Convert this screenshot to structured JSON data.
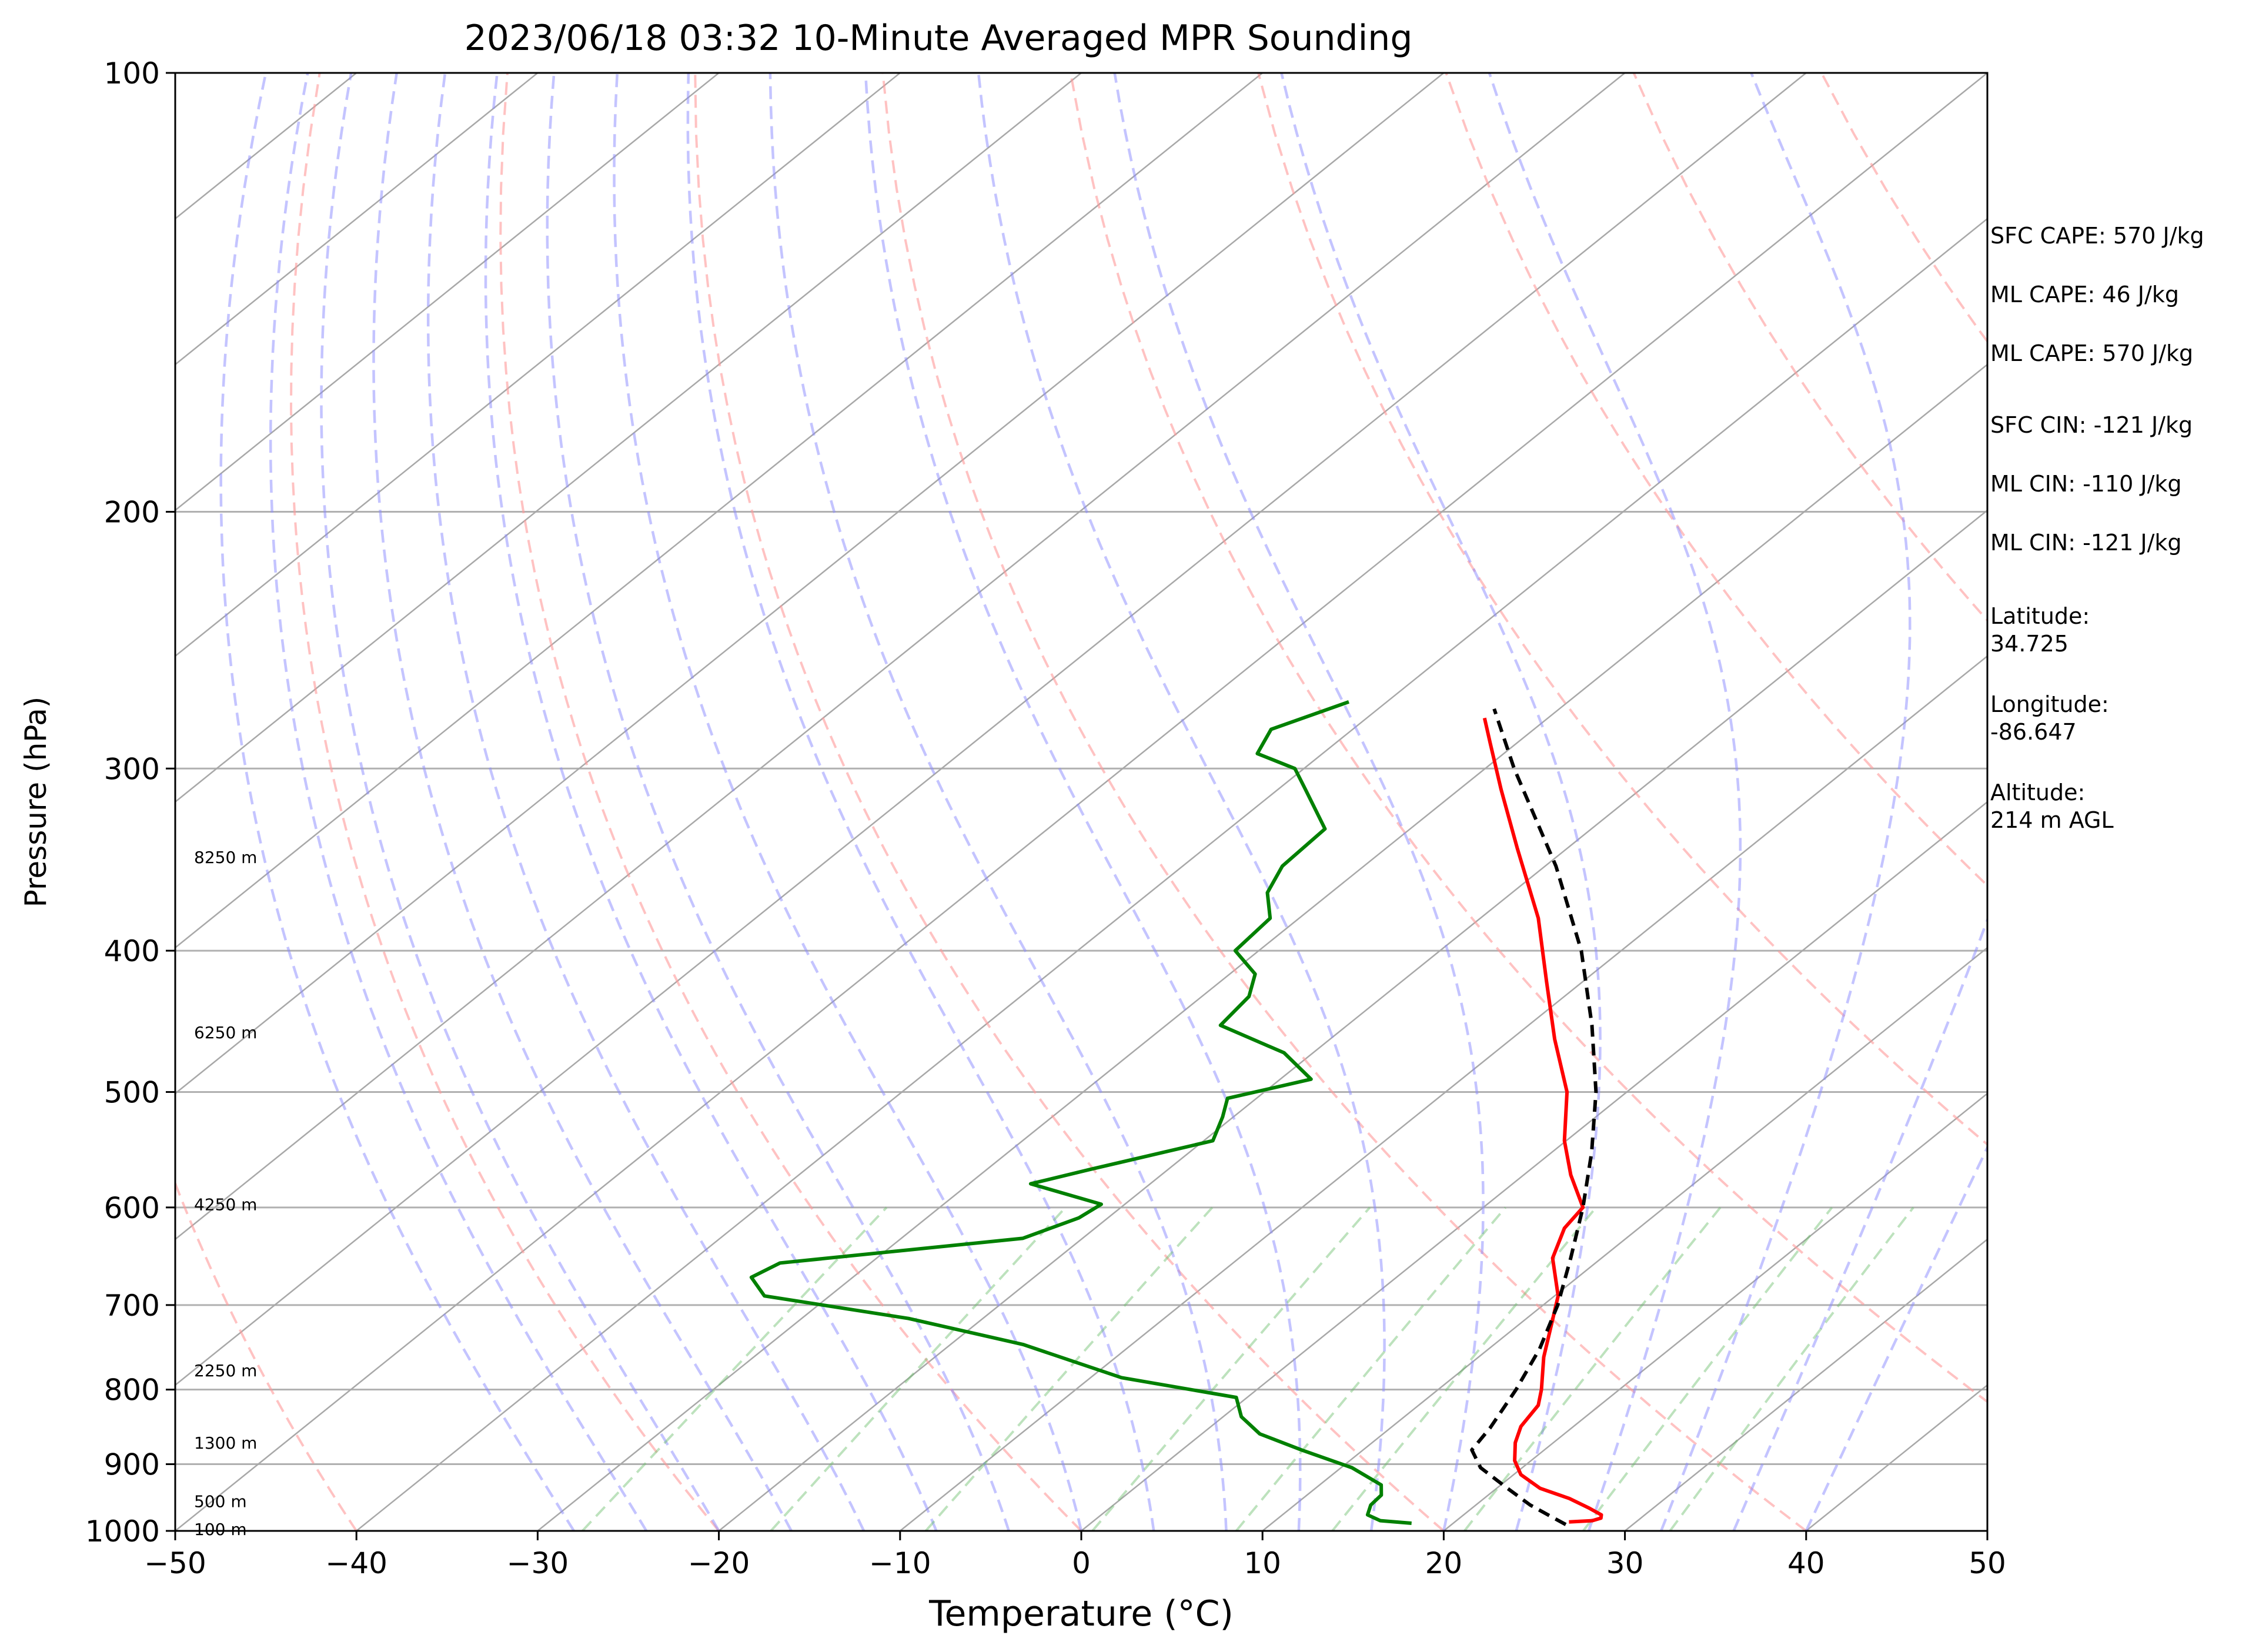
{
  "chart_data": {
    "type": "line",
    "title": "2023/06/18 03:32 10-Minute Averaged MPR Sounding",
    "xlabel": "Temperature (°C)",
    "ylabel": "Pressure (hPa)",
    "xlim": [
      -50,
      50
    ],
    "ylim": [
      1000,
      100
    ],
    "y_scale": "log",
    "skew_ratio_per_log_pressure": 1,
    "xticks": [
      -50,
      -40,
      -30,
      -20,
      -10,
      0,
      10,
      20,
      30,
      40,
      50
    ],
    "xtick_labels": [
      "−50",
      "−40",
      "−30",
      "−20",
      "−10",
      "0",
      "10",
      "20",
      "30",
      "40",
      "50"
    ],
    "yticks": [
      100,
      200,
      300,
      400,
      500,
      600,
      700,
      800,
      900,
      1000
    ],
    "ytick_labels": [
      "100",
      "200",
      "300",
      "400",
      "500",
      "600",
      "700",
      "800",
      "900",
      "1000"
    ],
    "grid": "horizontal",
    "height_labels": [
      {
        "text": "8250 m",
        "p": 345
      },
      {
        "text": "6250 m",
        "p": 455
      },
      {
        "text": "4250 m",
        "p": 597
      },
      {
        "text": "2250 m",
        "p": 776
      },
      {
        "text": "1300 m",
        "p": 870
      },
      {
        "text": "500 m",
        "p": 954
      },
      {
        "text": "100 m",
        "p": 997
      }
    ],
    "series": [
      {
        "color": "#ff0000",
        "values": [
          {
            "p": 986,
            "t": 26.3
          },
          {
            "p": 984,
            "t": 27.5
          },
          {
            "p": 980,
            "t": 27.8
          },
          {
            "p": 975,
            "t": 27.6
          },
          {
            "p": 965,
            "t": 26.5
          },
          {
            "p": 950,
            "t": 24.7
          },
          {
            "p": 935,
            "t": 22.4
          },
          {
            "p": 915,
            "t": 20.4
          },
          {
            "p": 895,
            "t": 19.1
          },
          {
            "p": 870,
            "t": 17.9
          },
          {
            "p": 848,
            "t": 17.1
          },
          {
            "p": 820,
            "t": 16.6
          },
          {
            "p": 800,
            "t": 15.7
          },
          {
            "p": 760,
            "t": 13.6
          },
          {
            "p": 720,
            "t": 11.7
          },
          {
            "p": 690,
            "t": 10.2
          },
          {
            "p": 650,
            "t": 7.3
          },
          {
            "p": 620,
            "t": 5.9
          },
          {
            "p": 600,
            "t": 5.5
          },
          {
            "p": 570,
            "t": 2.6
          },
          {
            "p": 540,
            "t": -0.1
          },
          {
            "p": 500,
            "t": -3.3
          },
          {
            "p": 460,
            "t": -7.6
          },
          {
            "p": 420,
            "t": -12.0
          },
          {
            "p": 380,
            "t": -16.8
          },
          {
            "p": 340,
            "t": -22.8
          },
          {
            "p": 310,
            "t": -27.7
          },
          {
            "p": 288,
            "t": -31.5
          },
          {
            "p": 277,
            "t": -33.5
          }
        ]
      },
      {
        "color": "#008000",
        "values": [
          {
            "p": 988,
            "t": 17.7
          },
          {
            "p": 984,
            "t": 15.8
          },
          {
            "p": 975,
            "t": 14.7
          },
          {
            "p": 960,
            "t": 14.2
          },
          {
            "p": 945,
            "t": 14.1
          },
          {
            "p": 930,
            "t": 13.4
          },
          {
            "p": 905,
            "t": 10.6
          },
          {
            "p": 880,
            "t": 6.6
          },
          {
            "p": 858,
            "t": 3.2
          },
          {
            "p": 835,
            "t": 1.0
          },
          {
            "p": 810,
            "t": -0.6
          },
          {
            "p": 785,
            "t": -8.3
          },
          {
            "p": 745,
            "t": -16.0
          },
          {
            "p": 715,
            "t": -24.1
          },
          {
            "p": 690,
            "t": -33.6
          },
          {
            "p": 670,
            "t": -35.6
          },
          {
            "p": 655,
            "t": -35.0
          },
          {
            "p": 630,
            "t": -23.3
          },
          {
            "p": 610,
            "t": -21.6
          },
          {
            "p": 597,
            "t": -21.3
          },
          {
            "p": 578,
            "t": -26.6
          },
          {
            "p": 565,
            "t": -24.3
          },
          {
            "p": 540,
            "t": -19.5
          },
          {
            "p": 520,
            "t": -20.6
          },
          {
            "p": 505,
            "t": -21.6
          },
          {
            "p": 490,
            "t": -18.3
          },
          {
            "p": 470,
            "t": -21.6
          },
          {
            "p": 450,
            "t": -27.0
          },
          {
            "p": 430,
            "t": -27.4
          },
          {
            "p": 415,
            "t": -28.6
          },
          {
            "p": 400,
            "t": -31.3
          },
          {
            "p": 380,
            "t": -31.6
          },
          {
            "p": 365,
            "t": -33.5
          },
          {
            "p": 350,
            "t": -34.5
          },
          {
            "p": 330,
            "t": -34.7
          },
          {
            "p": 310,
            "t": -38.5
          },
          {
            "p": 300,
            "t": -40.5
          },
          {
            "p": 293,
            "t": -43.6
          },
          {
            "p": 282,
            "t": -44.5
          },
          {
            "p": 270,
            "t": -42.1
          }
        ]
      },
      {
        "color": "#000000",
        "style": "dashed",
        "values": [
          {
            "p": 990,
            "t": 26.3
          },
          {
            "p": 980,
            "t": 25.2
          },
          {
            "p": 960,
            "t": 23.0
          },
          {
            "p": 935,
            "t": 20.6
          },
          {
            "p": 905,
            "t": 17.7
          },
          {
            "p": 880,
            "t": 16.0
          },
          {
            "p": 850,
            "t": 15.5
          },
          {
            "p": 800,
            "t": 14.3
          },
          {
            "p": 750,
            "t": 12.8
          },
          {
            "p": 700,
            "t": 10.8
          },
          {
            "p": 650,
            "t": 8.3
          },
          {
            "p": 600,
            "t": 5.5
          },
          {
            "p": 550,
            "t": 2.2
          },
          {
            "p": 500,
            "t": -1.7
          },
          {
            "p": 450,
            "t": -6.5
          },
          {
            "p": 400,
            "t": -12.2
          },
          {
            "p": 350,
            "t": -19.4
          },
          {
            "p": 300,
            "t": -28.4
          },
          {
            "p": 273,
            "t": -33.6
          }
        ]
      }
    ]
  },
  "info_panel": {
    "sfc_cape": "SFC CAPE: 570 J/kg",
    "ml_cape_1": "ML CAPE: 46 J/kg",
    "ml_cape_2": "ML CAPE: 570 J/kg",
    "sfc_cin": "SFC CIN: -121 J/kg",
    "ml_cin_1": "ML CIN: -110 J/kg",
    "ml_cin_2": "ML CIN: -121 J/kg",
    "latitude": "Latitude:\n34.725",
    "longitude": "Longitude:\n-86.647",
    "altitude": "Altitude:\n214 m AGL"
  }
}
